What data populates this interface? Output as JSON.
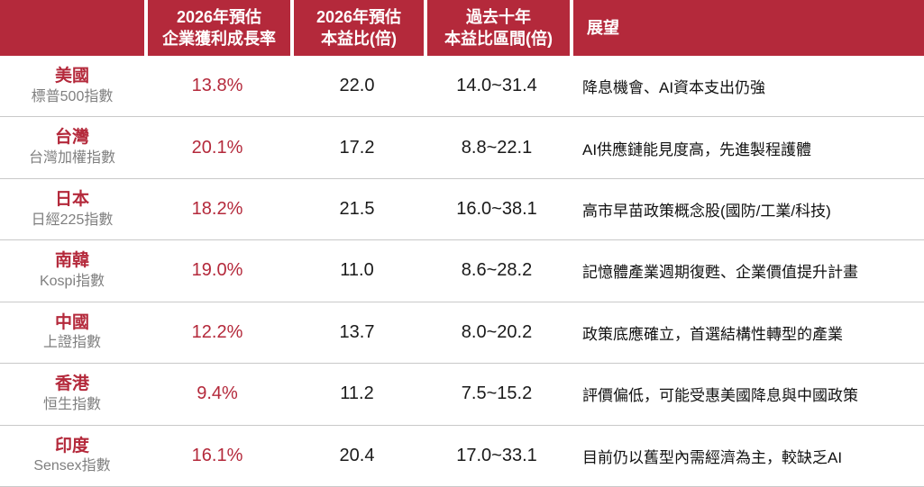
{
  "colors": {
    "header_bg": "#b4293b",
    "accent_red": "#b4293b",
    "sub_label_gray": "#7f7f7f",
    "body_text": "#1a1a1a",
    "row_divider": "#c9c9c9"
  },
  "chart_data": {
    "type": "table",
    "columns": [
      {
        "line1": "",
        "line2": ""
      },
      {
        "line1": "2026年預估",
        "line2": "企業獲利成長率"
      },
      {
        "line1": "2026年預估",
        "line2": "本益比(倍)"
      },
      {
        "line1": "過去十年",
        "line2": "本益比區間(倍)"
      },
      {
        "line1": "展望",
        "line2": ""
      }
    ],
    "rows": [
      {
        "country": "美國",
        "index_name": "標普500指數",
        "eps_growth_2026": "13.8%",
        "pe_2026": "22.0",
        "pe_range_10y": "14.0~31.4",
        "outlook": "降息機會、AI資本支出仍強"
      },
      {
        "country": "台灣",
        "index_name": "台灣加權指數",
        "eps_growth_2026": "20.1%",
        "pe_2026": "17.2",
        "pe_range_10y": "8.8~22.1",
        "outlook": "AI供應鏈能見度高，先進製程護體"
      },
      {
        "country": "日本",
        "index_name": "日經225指數",
        "eps_growth_2026": "18.2%",
        "pe_2026": "21.5",
        "pe_range_10y": "16.0~38.1",
        "outlook": "高市早苗政策概念股(國防/工業/科技)"
      },
      {
        "country": "南韓",
        "index_name": "Kospi指數",
        "eps_growth_2026": "19.0%",
        "pe_2026": "11.0",
        "pe_range_10y": "8.6~28.2",
        "outlook": "記憶體產業週期復甦、企業價值提升計畫"
      },
      {
        "country": "中國",
        "index_name": "上證指數",
        "eps_growth_2026": "12.2%",
        "pe_2026": "13.7",
        "pe_range_10y": "8.0~20.2",
        "outlook": "政策底應確立，首選結構性轉型的產業"
      },
      {
        "country": "香港",
        "index_name": "恒生指數",
        "eps_growth_2026": "9.4%",
        "pe_2026": "11.2",
        "pe_range_10y": "7.5~15.2",
        "outlook": "評價偏低，可能受惠美國降息與中國政策"
      },
      {
        "country": "印度",
        "index_name": "Sensex指數",
        "eps_growth_2026": "16.1%",
        "pe_2026": "20.4",
        "pe_range_10y": "17.0~33.1",
        "outlook": "目前仍以舊型內需經濟為主，較缺乏AI"
      }
    ]
  }
}
